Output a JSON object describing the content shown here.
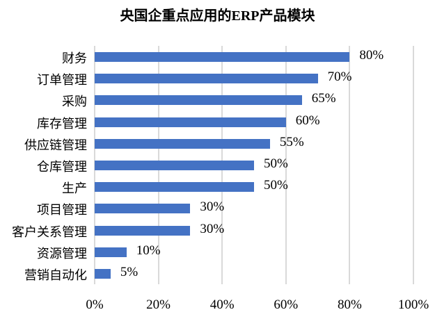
{
  "chart_data": {
    "type": "bar",
    "orientation": "horizontal",
    "title": "央国企重点应用的ERP产品模块",
    "xlabel": "",
    "ylabel": "",
    "categories": [
      "财务",
      "订单管理",
      "采购",
      "库存管理",
      "供应链管理",
      "仓库管理",
      "生产",
      "项目管理",
      "客户关系管理",
      "资源管理",
      "营销自动化"
    ],
    "values": [
      80,
      70,
      65,
      60,
      55,
      50,
      50,
      30,
      30,
      10,
      5
    ],
    "value_labels": [
      "80%",
      "70%",
      "65%",
      "60%",
      "55%",
      "50%",
      "50%",
      "30%",
      "30%",
      "10%",
      "5%"
    ],
    "xlim": [
      0,
      100
    ],
    "x_ticks": [
      "0%",
      "20%",
      "40%",
      "60%",
      "80%",
      "100%"
    ],
    "grid": true,
    "legend": "none",
    "bar_color": "#4472C4",
    "grid_color": "#d9d9d9"
  }
}
